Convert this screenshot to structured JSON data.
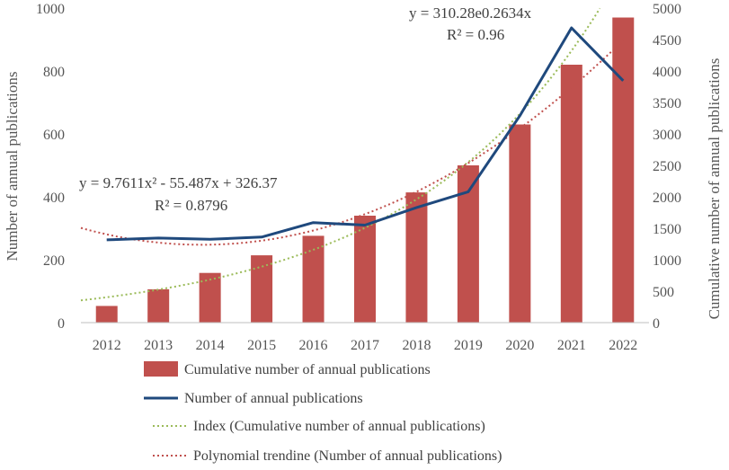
{
  "chart_data": {
    "type": "bar",
    "categories": [
      "2012",
      "2013",
      "2014",
      "2015",
      "2016",
      "2017",
      "2018",
      "2019",
      "2020",
      "2021",
      "2022"
    ],
    "series": [
      {
        "name": "Cumulative number of annual publications",
        "type": "bar",
        "axis": "right",
        "color": "#c0504d",
        "values": [
          265,
          530,
          790,
          1070,
          1380,
          1700,
          2070,
          2500,
          3150,
          4100,
          4850
        ]
      },
      {
        "name": "Number of annual publications",
        "type": "line",
        "axis": "left",
        "color": "#1f497d",
        "values": [
          263,
          269,
          265,
          272,
          318,
          310,
          366,
          416,
          658,
          937,
          769
        ]
      },
      {
        "name": "Index (Cumulative number of annual publications)",
        "type": "trendline-exponential",
        "axis": "right",
        "color": "#9bbb59",
        "equation": "y = 310.28e0.2634x",
        "r2": "R² = 0.96",
        "coefficients": {
          "a": 310.28,
          "b": 0.2634
        }
      },
      {
        "name": "Polynomial trendine (Number of annual publications)",
        "type": "trendline-polynomial",
        "axis": "left",
        "color": "#c0504d",
        "equation": "y = 9.7611x² - 55.487x + 326.37",
        "r2": "R² = 0.8796",
        "coefficients": {
          "a": 9.7611,
          "b": -55.487,
          "c": 326.37
        }
      }
    ],
    "y_left": {
      "label": "Number of annual publications",
      "ticks": [
        0,
        200,
        400,
        600,
        800,
        1000
      ],
      "range": [
        0,
        1000
      ]
    },
    "y_right": {
      "label": "Cumulative number of annual publications",
      "ticks": [
        0,
        500,
        1000,
        1500,
        2000,
        2500,
        3000,
        3500,
        4000,
        4500,
        5000
      ],
      "range": [
        0,
        5000
      ]
    },
    "grid": false,
    "legend_position": "bottom"
  }
}
